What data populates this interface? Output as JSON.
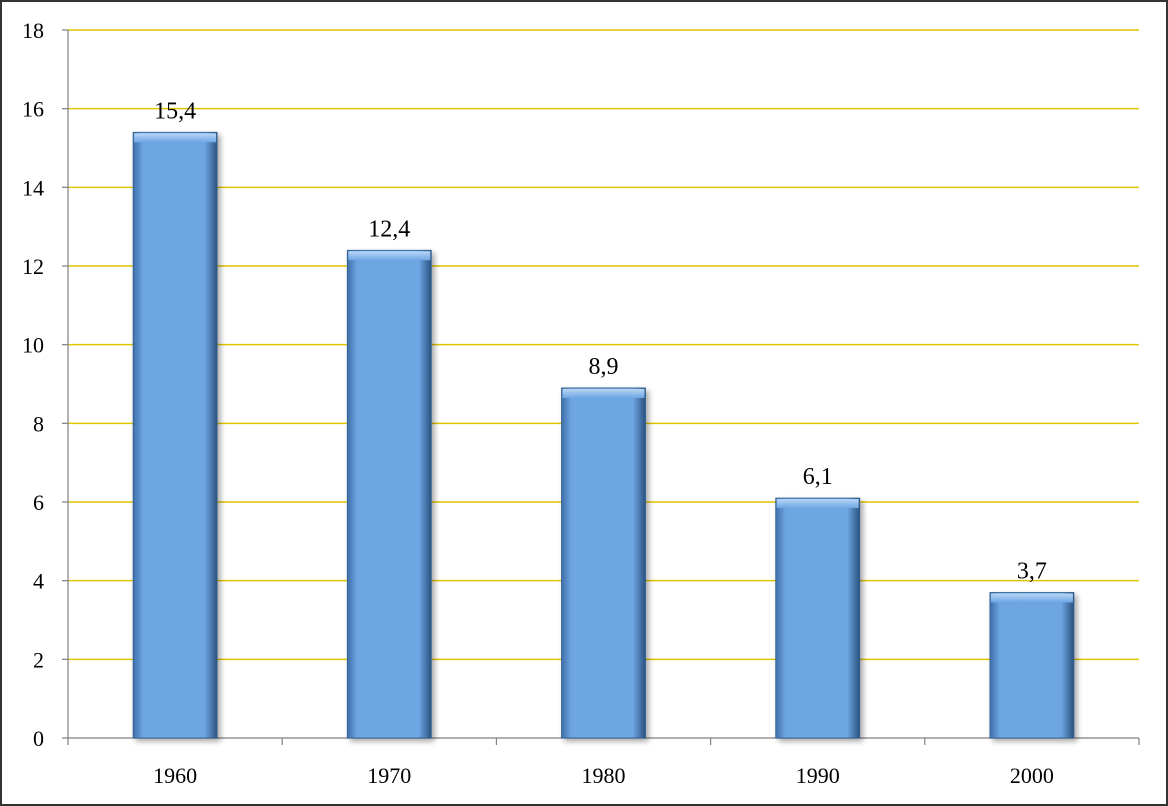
{
  "chart_data": {
    "type": "bar",
    "title": "",
    "xlabel": "",
    "ylabel": "",
    "categories": [
      "1960",
      "1970",
      "1980",
      "1990",
      "2000"
    ],
    "values": [
      15.4,
      12.4,
      8.9,
      6.1,
      3.7
    ],
    "data_labels": [
      "15,4",
      "12,4",
      "8,9",
      "6,1",
      "3,7"
    ],
    "ylim": [
      0,
      18
    ],
    "yticks": [
      0,
      2,
      4,
      6,
      8,
      10,
      12,
      14,
      16,
      18
    ],
    "grid": true,
    "legend": "none",
    "colors": {
      "bar": "#6ea6e4",
      "bar_edge": "#2e5d8f",
      "grid": "#e0c400",
      "axis": "#7f7f7f"
    }
  }
}
